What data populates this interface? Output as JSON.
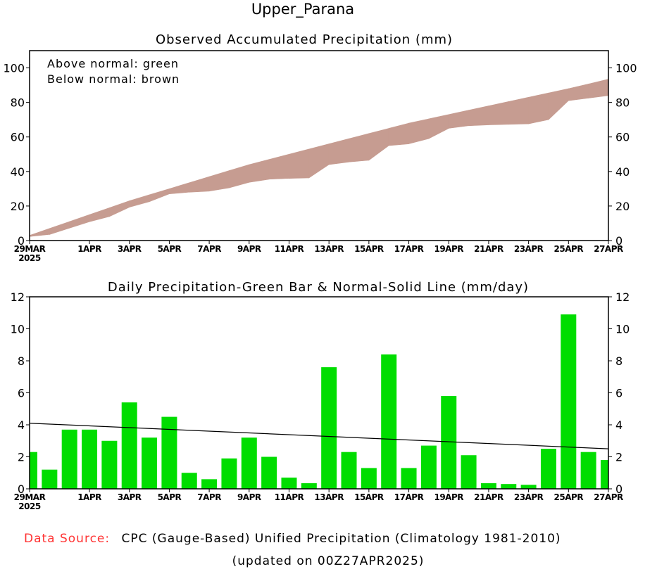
{
  "title": "Upper_Parana",
  "footer": {
    "source_label": "Data Source:",
    "source_text": "CPC (Gauge-Based) Unified Precipitation (Climatology 1981-2010)",
    "updated": "(updated on 00Z27APR2025)",
    "source_label_color": "#ff3333"
  },
  "chart_data": [
    {
      "type": "area",
      "title": "Observed Accumulated Precipitation (mm)",
      "legend": [
        "Above normal: green",
        "Below normal: brown"
      ],
      "legend_placement": "top-left",
      "colors": {
        "above": "#00cc00",
        "below": "#c69c91"
      },
      "ylim": [
        0,
        110
      ],
      "yticks": [
        0,
        20,
        40,
        60,
        80,
        100
      ],
      "x_tick_labels": [
        "29MAR",
        "1APR",
        "3APR",
        "5APR",
        "7APR",
        "9APR",
        "11APR",
        "13APR",
        "15APR",
        "17APR",
        "19APR",
        "21APR",
        "23APR",
        "25APR",
        "27APR"
      ],
      "x_tick_day_index": [
        0,
        3,
        5,
        7,
        9,
        11,
        13,
        15,
        17,
        19,
        21,
        23,
        25,
        27,
        29
      ],
      "year_label": "2025",
      "observed_accum": [
        2.3,
        3.5,
        7.2,
        10.9,
        13.9,
        19.3,
        22.5,
        27,
        28,
        28.6,
        30.5,
        33.7,
        35.5,
        36,
        36.3,
        44,
        45.5,
        46.5,
        55,
        56,
        59,
        65,
        66.5,
        67,
        67.3,
        67.6,
        70,
        81,
        82.5,
        84
      ],
      "normal_accum": [
        3,
        7,
        11,
        15,
        19,
        23,
        26.5,
        30,
        33.5,
        37,
        40.5,
        44,
        47,
        50,
        53,
        56,
        59,
        62,
        65,
        68,
        70.5,
        73,
        75.5,
        78,
        80.5,
        83,
        85.5,
        88,
        90.7,
        93.5
      ]
    },
    {
      "type": "bar",
      "title": "Daily Precipitation-Green Bar & Normal-Solid Line (mm/day)",
      "colors": {
        "bar": "#00dd00",
        "normal": "#000000"
      },
      "ylim": [
        0,
        12
      ],
      "yticks": [
        0,
        2,
        4,
        6,
        8,
        10,
        12
      ],
      "x_tick_labels": [
        "29MAR",
        "1APR",
        "3APR",
        "5APR",
        "7APR",
        "9APR",
        "11APR",
        "13APR",
        "15APR",
        "17APR",
        "19APR",
        "21APR",
        "23APR",
        "25APR",
        "27APR"
      ],
      "x_tick_day_index": [
        0,
        3,
        5,
        7,
        9,
        11,
        13,
        15,
        17,
        19,
        21,
        23,
        25,
        27,
        29
      ],
      "year_label": "2025",
      "daily": [
        2.3,
        1.2,
        3.7,
        3.7,
        3.0,
        5.4,
        3.2,
        4.5,
        1.0,
        0.6,
        1.9,
        3.2,
        2.0,
        0.7,
        0.35,
        7.6,
        2.3,
        1.3,
        8.4,
        1.3,
        2.7,
        5.8,
        2.1,
        0.35,
        0.3,
        0.25,
        2.5,
        10.9,
        2.3,
        1.8
      ],
      "normal_start": 4.1,
      "normal_end": 2.5
    }
  ]
}
